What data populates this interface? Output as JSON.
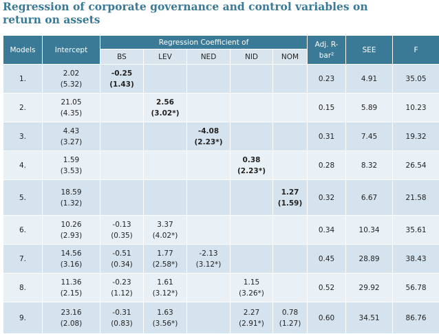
{
  "title": {
    "line1": "Regression of corporate governance and control variables on",
    "line2": "return on assets"
  },
  "table": {
    "headers": {
      "models": "Models",
      "intercept": "Intercept",
      "regression": "Regression Coefficient of",
      "adj_r_bar": "Adj. R-",
      "adj_r_bar2": "bar²",
      "see": "SEE",
      "f": "F"
    },
    "subheaders": {
      "bs": "BS",
      "lev": "LEV",
      "ned": "NED",
      "nid": "NID",
      "nom": "NOM"
    },
    "rows": [
      {
        "model": "1.",
        "intercept": "2.02",
        "intercept_t": "(5.32)",
        "bs": "-0.25",
        "bs_t": "(1.43)",
        "adj": "0.23",
        "see": "4.91",
        "f": "35.05"
      },
      {
        "model": "2.",
        "intercept": "21.05",
        "intercept_t": "(4.35)",
        "lev": "2.56",
        "lev_t": "(3.02*)",
        "adj": "0.15",
        "see": "5.89",
        "f": "10.23"
      },
      {
        "model": "3.",
        "intercept": "4.43",
        "intercept_t": "(3.27)",
        "ned": "-4.08",
        "ned_t": "(2.23*)",
        "adj": "0.31",
        "see": "7.45",
        "f": "19.32"
      },
      {
        "model": "4.",
        "intercept": "1.59",
        "intercept_t": "(3.53)",
        "nid": "0.38",
        "nid_t": "(2.23*)",
        "adj": "0.28",
        "see": "8.32",
        "f": "26.54"
      },
      {
        "model": "5.",
        "intercept": "18.59",
        "intercept_t": "(1.32)",
        "nom": "1.27",
        "nom_t": "(1.59)",
        "adj": "0.32",
        "see": "6.67",
        "f": "21.58"
      },
      {
        "model": "6.",
        "intercept": "10.26",
        "intercept_t": "(2.93)",
        "bs": "-0.13",
        "bs_t": "(0.35)",
        "lev": "3.37",
        "lev_t": "(4.02*)",
        "adj": "0.34",
        "see": "10.34",
        "f": "35.61"
      },
      {
        "model": "7.",
        "intercept": "14.56",
        "intercept_t": "(3.16)",
        "bs": "-0.51",
        "bs_t": "(0.34)",
        "lev": "1.77",
        "lev_t": "(2.58*)",
        "ned": "-2.13",
        "ned_t": "(3.12*)",
        "adj": "0.45",
        "see": "28.89",
        "f": "38.43"
      },
      {
        "model": "8.",
        "intercept": "11.36",
        "intercept_t": "(2.15)",
        "bs": "-0.23",
        "bs_t": "(1.12)",
        "lev": "1.61",
        "lev_t": "(3.12*)",
        "nid": "1.15",
        "nid_t": "(3.26*)",
        "adj": "0.52",
        "see": "29.92",
        "f": "56.78"
      },
      {
        "model": "9.",
        "intercept": "23.16",
        "intercept_t": "(2.08)",
        "bs": "-0.31",
        "bs_t": "(0.83)",
        "lev": "1.63",
        "lev_t": "(3.56*)",
        "nid": "2.27",
        "nid_t": "(2.91*)",
        "nom": "0.78",
        "nom_t": "(1.27)",
        "adj": "0.60",
        "see": "34.51",
        "f": "86.76"
      }
    ]
  },
  "colors": {
    "title": "#3a7a96",
    "header_bg": "#3a7a96",
    "subheader_bg": "#d9e5ee",
    "row_dark": "#d4e3ee",
    "row_light": "#eaf1f6"
  }
}
